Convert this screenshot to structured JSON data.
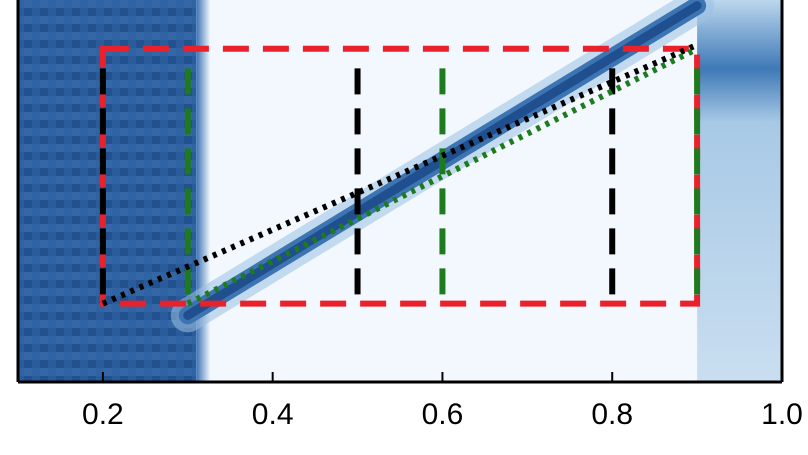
{
  "chart_data": {
    "type": "heatmap",
    "title": "",
    "xlabel": "",
    "ylabel": "",
    "xlim": [
      0.1,
      1.0
    ],
    "ylim": [
      0.0,
      1.0
    ],
    "x_ticks": [
      {
        "value": 0.2,
        "label": "0.2"
      },
      {
        "value": 0.4,
        "label": "0.4"
      },
      {
        "value": 0.6,
        "label": "0.6"
      },
      {
        "value": 0.8,
        "label": "0.8"
      },
      {
        "value": 1.0,
        "label": "1.0"
      }
    ],
    "grid": false,
    "colors": {
      "dark": "#1f4f8f",
      "light": "#f2f8fd",
      "red_dash": "#e8212b",
      "black_dash": "#000000",
      "green_dash": "#1e7a1e"
    },
    "regions": [
      {
        "name": "dark-band-left",
        "x_from": 0.1,
        "x_to": 0.31,
        "level": "high"
      },
      {
        "name": "light-middle",
        "x_from": 0.31,
        "x_to": 0.9,
        "level": "low"
      },
      {
        "name": "mixed-right",
        "x_from": 0.9,
        "x_to": 1.0,
        "level": "medium"
      }
    ],
    "ridge": [
      {
        "x": 0.3,
        "y": 0.17
      },
      {
        "x": 0.9,
        "y": 0.96
      }
    ],
    "overlays": [
      {
        "kind": "rect",
        "style": "dashed",
        "color": "red",
        "x0": 0.2,
        "x1": 0.9,
        "y0": 0.2,
        "y1": 0.85
      },
      {
        "kind": "vline",
        "style": "dashed",
        "color": "black",
        "x": 0.2,
        "y0": 0.2,
        "y1": 0.8
      },
      {
        "kind": "vline",
        "style": "dashed",
        "color": "black",
        "x": 0.5,
        "y0": 0.2,
        "y1": 0.8
      },
      {
        "kind": "vline",
        "style": "dashed",
        "color": "black",
        "x": 0.8,
        "y0": 0.2,
        "y1": 0.8
      },
      {
        "kind": "vline",
        "style": "dashed",
        "color": "green",
        "x": 0.3,
        "y0": 0.2,
        "y1": 0.8
      },
      {
        "kind": "vline",
        "style": "dashed",
        "color": "green",
        "x": 0.6,
        "y0": 0.2,
        "y1": 0.8
      },
      {
        "kind": "vline",
        "style": "dashed",
        "color": "green",
        "x": 0.9,
        "y0": 0.2,
        "y1": 0.8
      },
      {
        "kind": "diag",
        "style": "dotted",
        "color": "black",
        "x0": 0.2,
        "y0": 0.2,
        "x1": 0.9,
        "y1": 0.86
      },
      {
        "kind": "diag",
        "style": "dotted",
        "color": "green",
        "x0": 0.3,
        "y0": 0.2,
        "x1": 0.9,
        "y1": 0.85
      }
    ]
  }
}
